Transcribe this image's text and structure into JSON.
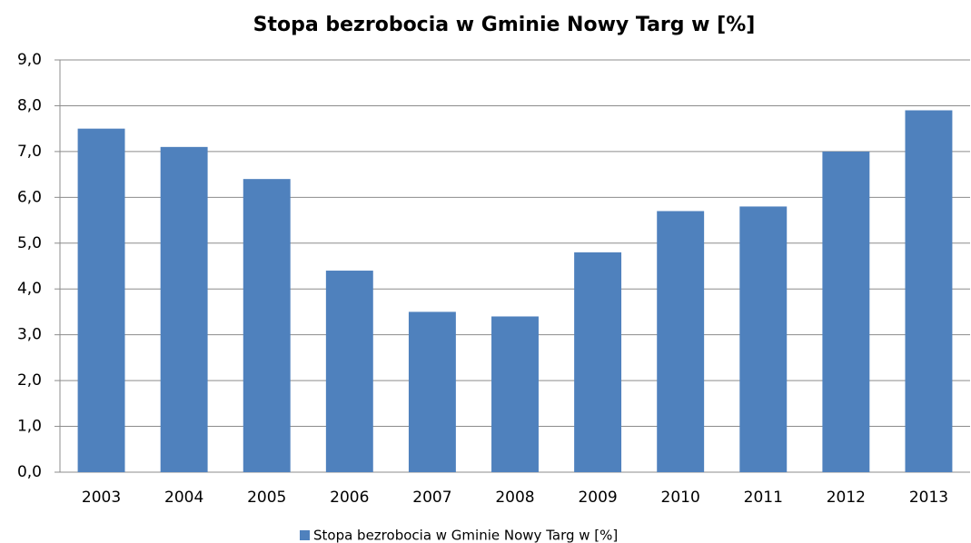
{
  "chart_data": {
    "type": "bar",
    "title": "Stopa bezrobocia w Gminie Nowy Targ w [%]",
    "categories": [
      "2003",
      "2004",
      "2005",
      "2006",
      "2007",
      "2008",
      "2009",
      "2010",
      "2011",
      "2012",
      "2013"
    ],
    "series": [
      {
        "name": "Stopa bezrobocia w Gminie Nowy Targ w [%]",
        "color": "#4f81bd",
        "values": [
          7.5,
          7.1,
          6.4,
          4.4,
          3.5,
          3.4,
          4.8,
          5.7,
          5.8,
          7.0,
          7.9
        ]
      }
    ],
    "ylim": [
      0,
      9
    ],
    "yticks": [
      {
        "value": 0,
        "label": "0,0"
      },
      {
        "value": 1,
        "label": "1,0"
      },
      {
        "value": 2,
        "label": "2,0"
      },
      {
        "value": 3,
        "label": "3,0"
      },
      {
        "value": 4,
        "label": "4,0"
      },
      {
        "value": 5,
        "label": "5,0"
      },
      {
        "value": 6,
        "label": "6,0"
      },
      {
        "value": 7,
        "label": "7,0"
      },
      {
        "value": 8,
        "label": "8,0"
      },
      {
        "value": 9,
        "label": "9,0"
      }
    ],
    "grid": true,
    "legend": "bottom"
  }
}
